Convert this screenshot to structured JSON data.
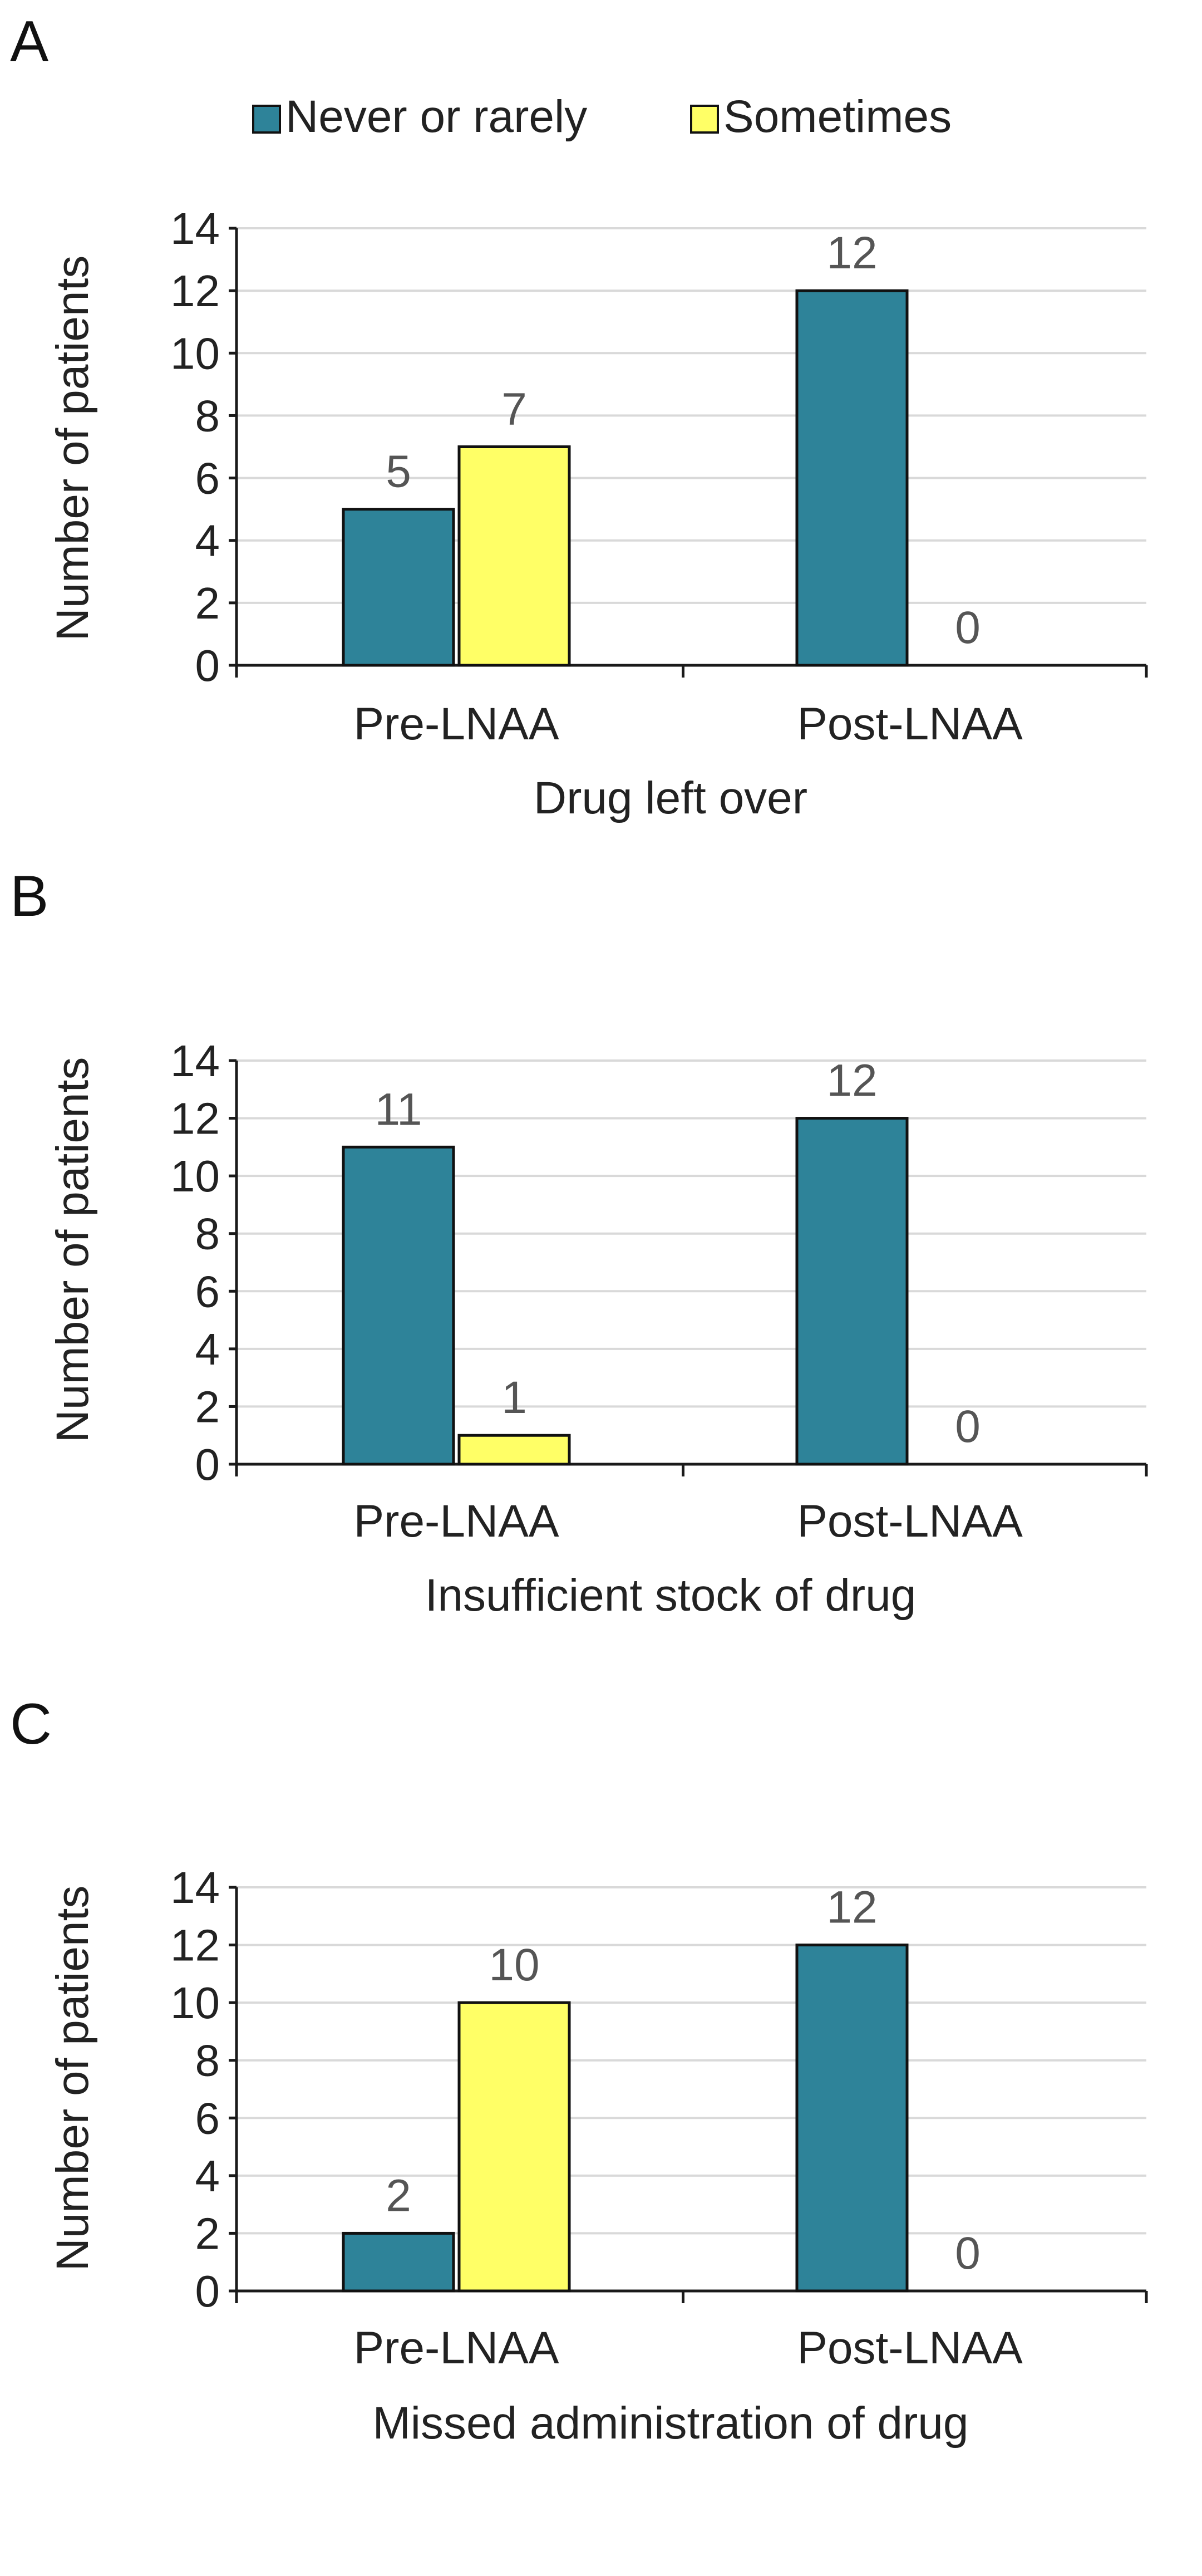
{
  "colors": {
    "never_or_rarely": "#2e8399",
    "sometimes": "#ffff66"
  },
  "legend": {
    "items": [
      {
        "label": "Never or rarely",
        "color": "#2e8399"
      },
      {
        "label": "Sometimes",
        "color": "#ffff66"
      }
    ]
  },
  "chart_data": [
    {
      "panel": "A",
      "type": "bar",
      "title": "",
      "xlabel": "Drug left over",
      "ylabel": "Number of patients",
      "ylim": [
        0,
        14
      ],
      "yticks": [
        0,
        2,
        4,
        6,
        8,
        10,
        12,
        14
      ],
      "grid": true,
      "legend": "top",
      "categories": [
        "Pre-LNAA",
        "Post-LNAA"
      ],
      "series": [
        {
          "name": "Never or rarely",
          "values": [
            5,
            12
          ]
        },
        {
          "name": "Sometimes",
          "values": [
            7,
            0
          ]
        }
      ]
    },
    {
      "panel": "B",
      "type": "bar",
      "title": "",
      "xlabel": "Insufficient stock of drug",
      "ylabel": "Number of patients",
      "ylim": [
        0,
        14
      ],
      "yticks": [
        0,
        2,
        4,
        6,
        8,
        10,
        12,
        14
      ],
      "grid": true,
      "categories": [
        "Pre-LNAA",
        "Post-LNAA"
      ],
      "series": [
        {
          "name": "Never or rarely",
          "values": [
            11,
            12
          ]
        },
        {
          "name": "Sometimes",
          "values": [
            1,
            0
          ]
        }
      ]
    },
    {
      "panel": "C",
      "type": "bar",
      "title": "",
      "xlabel": "Missed administration of drug",
      "ylabel": "Number of patients",
      "ylim": [
        0,
        14
      ],
      "yticks": [
        0,
        2,
        4,
        6,
        8,
        10,
        12,
        14
      ],
      "grid": true,
      "categories": [
        "Pre-LNAA",
        "Post-LNAA"
      ],
      "series": [
        {
          "name": "Never or rarely",
          "values": [
            2,
            12
          ]
        },
        {
          "name": "Sometimes",
          "values": [
            10,
            0
          ]
        }
      ]
    }
  ]
}
